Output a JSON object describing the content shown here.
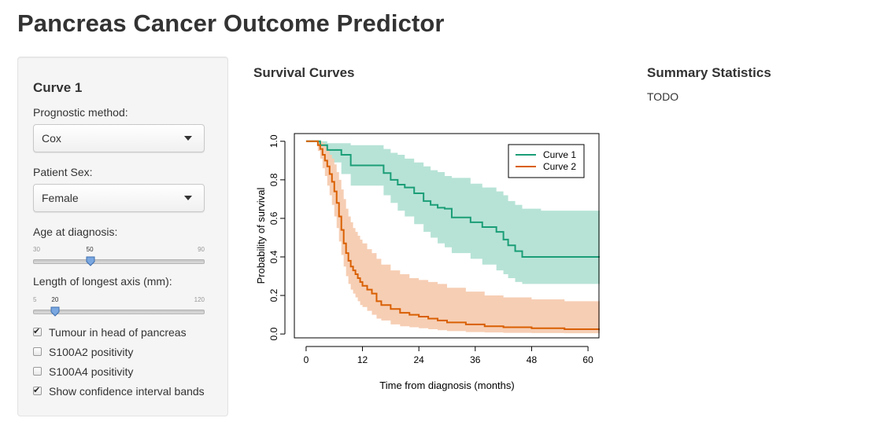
{
  "app": {
    "title": "Pancreas Cancer Outcome Predictor"
  },
  "sidebar": {
    "curve_heading": "Curve 1",
    "prognostic_method": {
      "label": "Prognostic method:",
      "value": "Cox"
    },
    "patient_sex": {
      "label": "Patient Sex:",
      "value": "Female"
    },
    "age_slider": {
      "label": "Age at diagnosis:",
      "min": "30",
      "max": "90",
      "value": "50",
      "min_num": 30,
      "max_num": 90,
      "value_num": 50
    },
    "length_slider": {
      "label": "Length of longest axis (mm):",
      "min": "5",
      "max": "120",
      "value": "20",
      "min_num": 5,
      "max_num": 120,
      "value_num": 20
    },
    "checkboxes": [
      {
        "label": "Tumour in head of pancreas",
        "checked": true
      },
      {
        "label": "S100A2 positivity",
        "checked": false
      },
      {
        "label": "S100A4 positivity",
        "checked": false
      },
      {
        "label": "Show confidence interval bands",
        "checked": true
      }
    ],
    "slider_handle_color": "#7aa7e0"
  },
  "main": {
    "survival_title": "Survival Curves",
    "summary_title": "Summary Statistics",
    "summary_text": "TODO"
  },
  "chart_data": {
    "type": "line",
    "title": "",
    "xlabel": "Time from diagnosis (months)",
    "ylabel": "Probability of survival",
    "xlim": [
      -2.5,
      62.5
    ],
    "ylim": [
      -0.02,
      1.04
    ],
    "xticks": [
      0,
      12,
      24,
      36,
      48,
      60
    ],
    "xtick_labels": [
      "0",
      "12",
      "24",
      "36",
      "48",
      "60"
    ],
    "yticks": [
      0,
      0.2,
      0.4,
      0.6,
      0.8,
      1.0
    ],
    "ytick_labels": [
      "0.0",
      "0.2",
      "0.4",
      "0.6",
      "0.8",
      "1.0"
    ],
    "grid": false,
    "legend_position": "top-right",
    "series": [
      {
        "name": "Curve 1",
        "color": "#1b9e77",
        "band_color": "#b3e2d4",
        "times": [
          0,
          3.0,
          4.5,
          7.5,
          9.5,
          16.5,
          18.0,
          19.5,
          21.0,
          23.0,
          25.0,
          26.5,
          28.0,
          29.5,
          31.0,
          35.0,
          37.5,
          40.5,
          42.0,
          43.0,
          44.5,
          46.0,
          50.0,
          62.5
        ],
        "values": [
          1.0,
          0.98,
          0.955,
          0.93,
          0.875,
          0.835,
          0.8,
          0.775,
          0.76,
          0.73,
          0.69,
          0.67,
          0.655,
          0.65,
          0.605,
          0.58,
          0.555,
          0.53,
          0.49,
          0.46,
          0.43,
          0.4,
          0.4,
          0.4
        ],
        "lower": [
          1.0,
          0.94,
          0.89,
          0.83,
          0.77,
          0.72,
          0.68,
          0.64,
          0.61,
          0.57,
          0.53,
          0.5,
          0.47,
          0.45,
          0.42,
          0.39,
          0.36,
          0.33,
          0.31,
          0.29,
          0.27,
          0.26,
          0.26,
          0.26
        ],
        "upper": [
          1.0,
          1.0,
          0.99,
          0.99,
          0.98,
          0.96,
          0.94,
          0.93,
          0.91,
          0.89,
          0.87,
          0.85,
          0.84,
          0.82,
          0.81,
          0.78,
          0.76,
          0.74,
          0.72,
          0.69,
          0.67,
          0.65,
          0.64,
          0.64
        ]
      },
      {
        "name": "Curve 2",
        "color": "#d95f02",
        "band_color": "#f5cbb0",
        "times": [
          0,
          2.5,
          3.0,
          3.5,
          4.0,
          4.5,
          5.0,
          5.5,
          6.0,
          6.5,
          7.0,
          7.5,
          8.0,
          8.5,
          9.0,
          9.5,
          10.0,
          10.5,
          11.0,
          11.5,
          12.0,
          13.0,
          14.0,
          15.0,
          16.0,
          18.0,
          20.0,
          22.0,
          24.0,
          26.0,
          28.0,
          30.0,
          34.0,
          38.0,
          42.0,
          48.0,
          55.0,
          62.5
        ],
        "values": [
          1.0,
          0.98,
          0.96,
          0.93,
          0.9,
          0.87,
          0.83,
          0.79,
          0.74,
          0.68,
          0.61,
          0.54,
          0.47,
          0.42,
          0.38,
          0.35,
          0.33,
          0.31,
          0.29,
          0.27,
          0.25,
          0.23,
          0.21,
          0.17,
          0.15,
          0.13,
          0.11,
          0.1,
          0.09,
          0.08,
          0.07,
          0.06,
          0.05,
          0.04,
          0.035,
          0.03,
          0.025,
          0.02
        ],
        "lower": [
          1.0,
          0.95,
          0.91,
          0.86,
          0.82,
          0.77,
          0.72,
          0.67,
          0.61,
          0.55,
          0.48,
          0.41,
          0.35,
          0.3,
          0.26,
          0.23,
          0.21,
          0.19,
          0.17,
          0.15,
          0.14,
          0.12,
          0.1,
          0.08,
          0.07,
          0.05,
          0.04,
          0.035,
          0.03,
          0.025,
          0.02,
          0.015,
          0.01,
          0.008,
          0.006,
          0.005,
          0.004,
          0.003
        ],
        "upper": [
          1.0,
          1.0,
          1.0,
          0.99,
          0.97,
          0.95,
          0.93,
          0.91,
          0.88,
          0.84,
          0.8,
          0.75,
          0.7,
          0.65,
          0.61,
          0.58,
          0.55,
          0.53,
          0.51,
          0.49,
          0.47,
          0.44,
          0.42,
          0.39,
          0.36,
          0.33,
          0.31,
          0.29,
          0.28,
          0.27,
          0.26,
          0.24,
          0.22,
          0.2,
          0.19,
          0.18,
          0.17,
          0.165
        ]
      }
    ]
  }
}
